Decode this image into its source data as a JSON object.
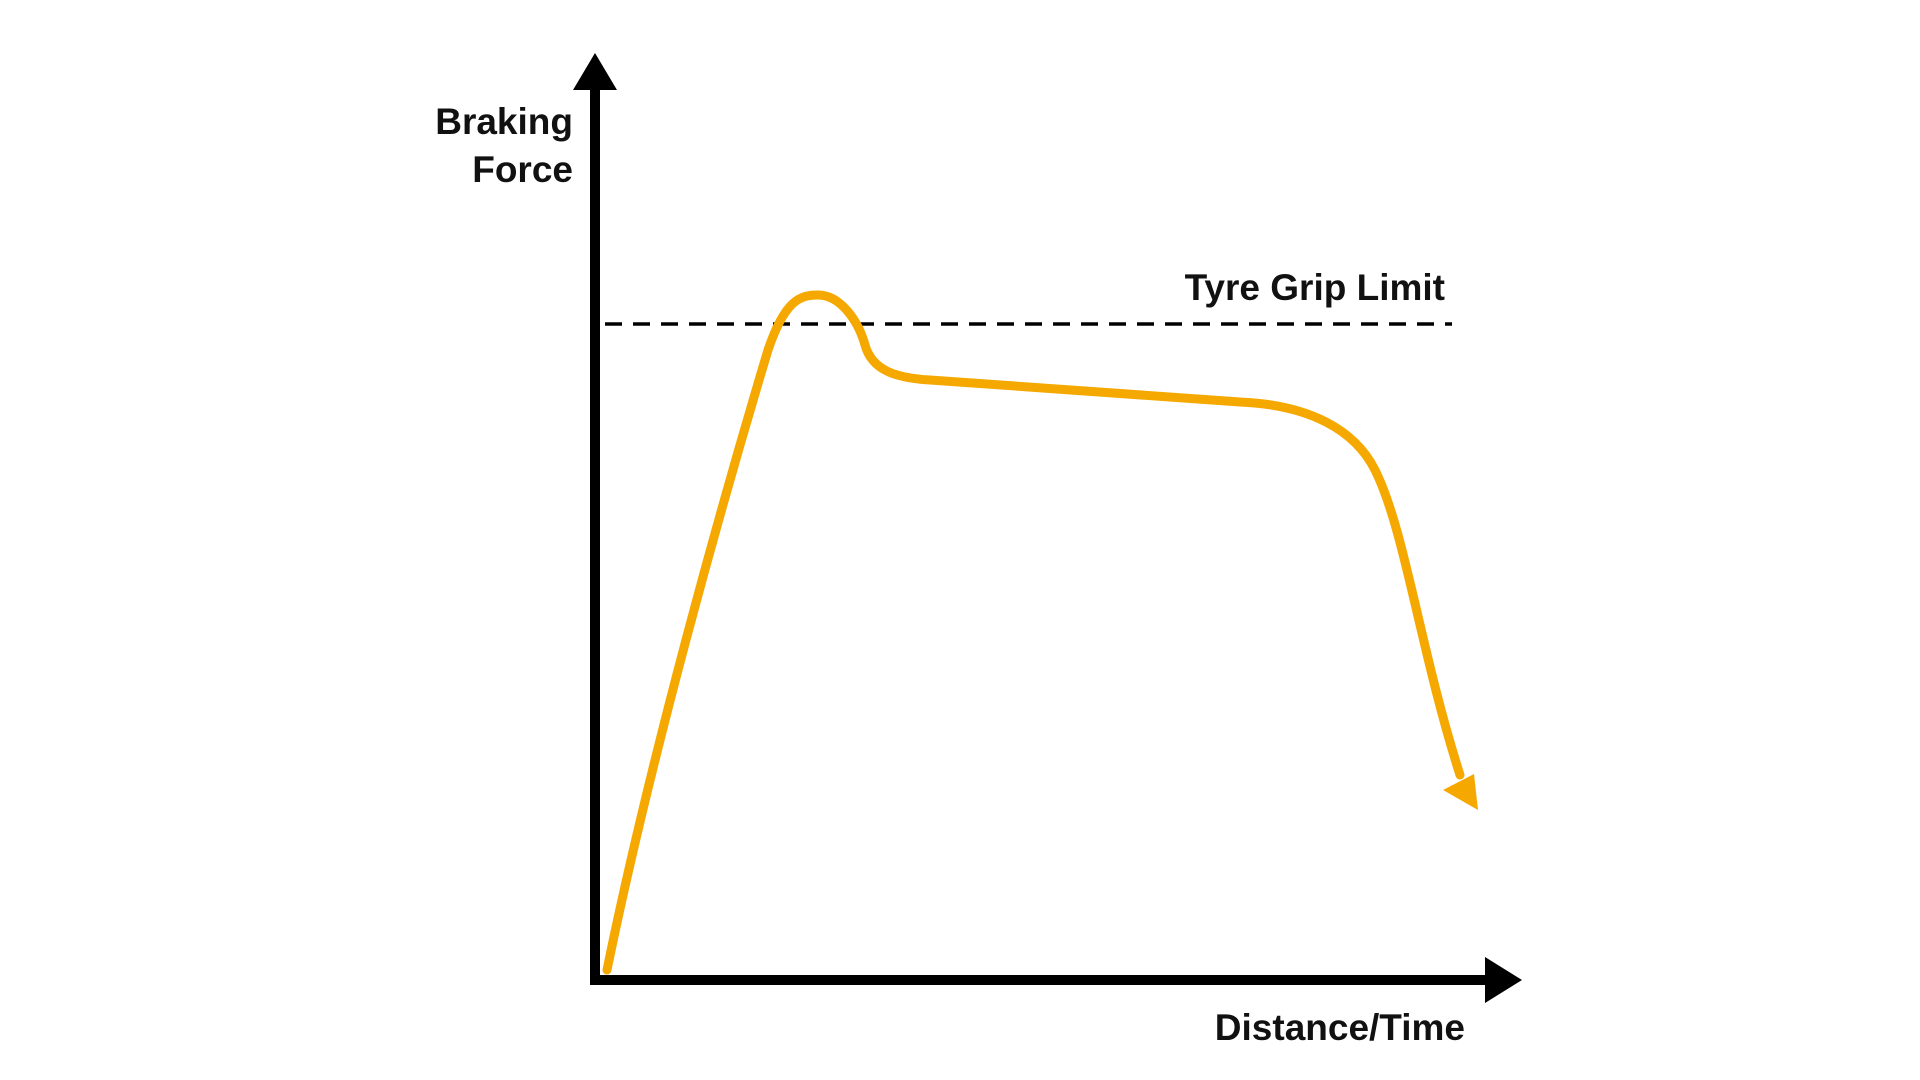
{
  "labels": {
    "y_axis_line1": "Braking",
    "y_axis_line2": "Force",
    "x_axis": "Distance/Time",
    "limit": "Tyre Grip Limit"
  },
  "colors": {
    "curve": "#F5A800",
    "axes": "#000000",
    "text": "#111111"
  }
}
